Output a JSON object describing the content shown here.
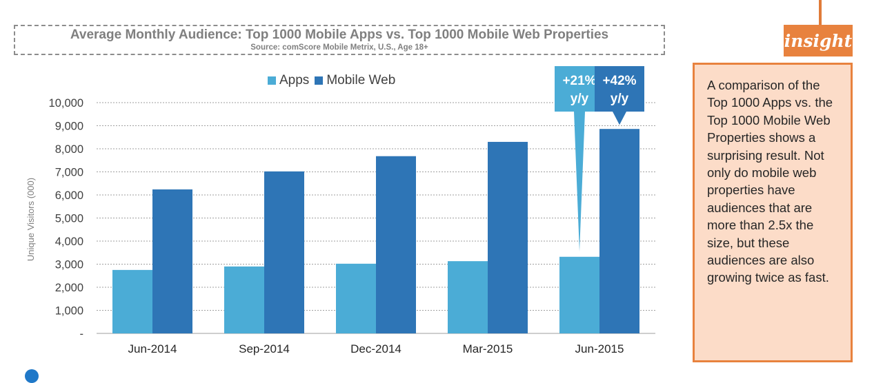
{
  "chart_data": {
    "type": "bar",
    "title": "Average Monthly Audience: Top 1000 Mobile Apps vs. Top 1000 Mobile Web Properties",
    "subtitle": "Source: comScore Mobile Metrix, U.S., Age 18+",
    "ylabel": "Unique Visitors (000)",
    "xlabel": "",
    "categories": [
      "Jun-2014",
      "Sep-2014",
      "Dec-2014",
      "Mar-2015",
      "Jun-2015"
    ],
    "series": [
      {
        "name": "Apps",
        "color": "#4bacd6",
        "values": [
          2750,
          2900,
          3020,
          3130,
          3320
        ]
      },
      {
        "name": "Mobile Web",
        "color": "#2e75b6",
        "values": [
          6240,
          7020,
          7680,
          8300,
          8860
        ]
      }
    ],
    "ylim": [
      0,
      10000
    ],
    "yticks": [
      0,
      1000,
      2000,
      3000,
      4000,
      5000,
      6000,
      7000,
      8000,
      9000,
      10000
    ],
    "ytick_labels": [
      "-",
      "1,000",
      "2,000",
      "3,000",
      "4,000",
      "5,000",
      "6,000",
      "7,000",
      "8,000",
      "9,000",
      "10,000"
    ],
    "grid": true,
    "legend_position": "top-center",
    "annotations": [
      {
        "series": "Apps",
        "category": "Jun-2015",
        "text_line1": "+21%",
        "text_line2": "y/y",
        "color": "#4bacd6"
      },
      {
        "series": "Mobile Web",
        "category": "Jun-2015",
        "text_line1": "+42%",
        "text_line2": "y/y",
        "color": "#2e75b6"
      }
    ]
  },
  "insight": {
    "tag": "insight",
    "text": "A comparison of the Top 1000 Apps vs. the Top 1000 Mobile Web Properties shows a surprising result. Not only do mobile web properties have audiences that are more than 2.5x the size, but these audiences are also growing twice as fast."
  },
  "colors": {
    "accent_orange": "#e8823e",
    "insight_bg": "#fcdcc8",
    "title_gray": "#7f7f7f"
  }
}
